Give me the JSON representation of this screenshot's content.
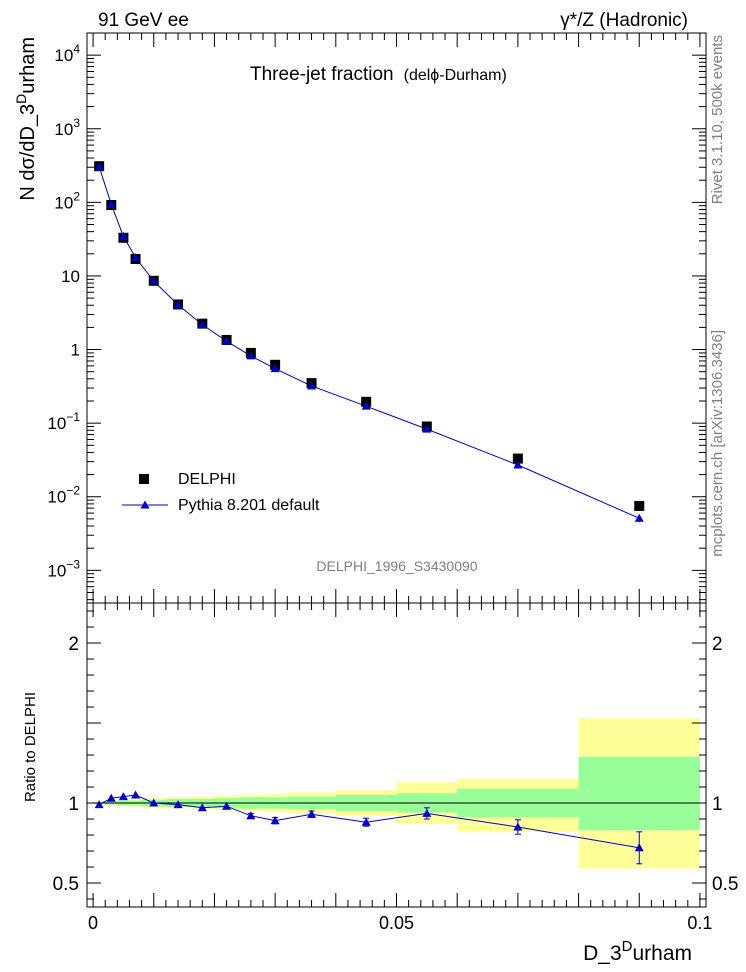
{
  "header": {
    "left": "91 GeV ee",
    "right": "γ*/Z (Hadronic)"
  },
  "side_labels": {
    "top": "Rivet 3.1.10,  500k events",
    "bottom": "mcplots.cern.ch [arXiv:1306.3436]"
  },
  "watermark": "DELPHI_1996_S3430090",
  "chart_data": [
    {
      "type": "scatter",
      "title": "Three-jet fraction",
      "subtitle": "(delϕ-Durham)",
      "ylabel": "N dσ/dD_3^Durham",
      "ylabel_parts": {
        "main": "N dσ/dD_3",
        "sup": "D",
        "rest": "urham"
      },
      "yscale": "log",
      "xlim": [
        -0.001,
        0.101
      ],
      "ylim": [
        0.00036,
        20000
      ],
      "y_ticks": [
        {
          "value": 10000,
          "base": "10",
          "exp": "4"
        },
        {
          "value": 1000,
          "base": "10",
          "exp": "3"
        },
        {
          "value": 100,
          "base": "10",
          "exp": "2"
        },
        {
          "value": 10,
          "base": "10",
          "exp": ""
        },
        {
          "value": 1,
          "base": "1",
          "exp": ""
        },
        {
          "value": 0.1,
          "base": "10",
          "exp": "−1"
        },
        {
          "value": 0.01,
          "base": "10",
          "exp": "−2"
        },
        {
          "value": 0.001,
          "base": "10",
          "exp": "−3"
        }
      ],
      "legend_position": "lower-left",
      "series": [
        {
          "name": "DELPHI",
          "marker": "square",
          "color": "#000000",
          "x": [
            0.001,
            0.003,
            0.005,
            0.007,
            0.01,
            0.014,
            0.018,
            0.022,
            0.026,
            0.03,
            0.036,
            0.045,
            0.055,
            0.07,
            0.09
          ],
          "y": [
            310,
            92,
            33,
            17,
            8.6,
            4.1,
            2.25,
            1.35,
            0.9,
            0.62,
            0.35,
            0.195,
            0.09,
            0.033,
            0.0075
          ]
        },
        {
          "name": "Pythia 8.201 default",
          "marker": "triangle",
          "color": "#0000cc",
          "x": [
            0.001,
            0.003,
            0.005,
            0.007,
            0.01,
            0.014,
            0.018,
            0.022,
            0.026,
            0.03,
            0.036,
            0.045,
            0.055,
            0.07,
            0.09
          ],
          "y": [
            305,
            94,
            34.5,
            17.8,
            8.5,
            4.05,
            2.18,
            1.3,
            0.82,
            0.55,
            0.32,
            0.17,
            0.083,
            0.027,
            0.0051
          ],
          "yerr": [
            0,
            0,
            0,
            0,
            0,
            0,
            0,
            0,
            0,
            0,
            0,
            0,
            0,
            0.002,
            0.0006
          ]
        }
      ]
    },
    {
      "type": "scatter",
      "title": "",
      "xlabel": "D_3^Durham",
      "xlabel_parts": {
        "main": "D_3",
        "sup": "D",
        "rest": "urham"
      },
      "ylabel": "Ratio to DELPHI",
      "xlim": [
        -0.001,
        0.101
      ],
      "ylim": [
        0.35,
        2.25
      ],
      "x_ticks": [
        {
          "value": 0,
          "label": "0"
        },
        {
          "value": 0.05,
          "label": "0.05"
        },
        {
          "value": 0.1,
          "label": "0.1"
        }
      ],
      "y_ticks": [
        {
          "value": 0.5,
          "label": "0.5"
        },
        {
          "value": 1,
          "label": "1"
        },
        {
          "value": 2,
          "label": "2"
        }
      ],
      "uncertainty_bands": [
        {
          "x0": 0.0,
          "x1": 0.002,
          "g": [
            0.995,
            1.005
          ],
          "y": [
            0.99,
            1.01
          ]
        },
        {
          "x0": 0.002,
          "x1": 0.004,
          "g": [
            0.99,
            1.01
          ],
          "y": [
            0.985,
            1.015
          ]
        },
        {
          "x0": 0.004,
          "x1": 0.006,
          "g": [
            0.985,
            1.015
          ],
          "y": [
            0.98,
            1.02
          ]
        },
        {
          "x0": 0.006,
          "x1": 0.008,
          "g": [
            0.985,
            1.015
          ],
          "y": [
            0.975,
            1.025
          ]
        },
        {
          "x0": 0.008,
          "x1": 0.012,
          "g": [
            0.98,
            1.02
          ],
          "y": [
            0.97,
            1.03
          ]
        },
        {
          "x0": 0.012,
          "x1": 0.016,
          "g": [
            0.975,
            1.025
          ],
          "y": [
            0.965,
            1.035
          ]
        },
        {
          "x0": 0.016,
          "x1": 0.02,
          "g": [
            0.975,
            1.025
          ],
          "y": [
            0.96,
            1.04
          ]
        },
        {
          "x0": 0.02,
          "x1": 0.024,
          "g": [
            0.97,
            1.03
          ],
          "y": [
            0.955,
            1.045
          ]
        },
        {
          "x0": 0.024,
          "x1": 0.028,
          "g": [
            0.965,
            1.035
          ],
          "y": [
            0.95,
            1.05
          ]
        },
        {
          "x0": 0.028,
          "x1": 0.032,
          "g": [
            0.965,
            1.035
          ],
          "y": [
            0.945,
            1.055
          ]
        },
        {
          "x0": 0.032,
          "x1": 0.04,
          "g": [
            0.96,
            1.04
          ],
          "y": [
            0.935,
            1.065
          ]
        },
        {
          "x0": 0.04,
          "x1": 0.05,
          "g": [
            0.95,
            1.05
          ],
          "y": [
            0.92,
            1.08
          ]
        },
        {
          "x0": 0.05,
          "x1": 0.06,
          "g": [
            0.94,
            1.06
          ],
          "y": [
            0.87,
            1.13
          ]
        },
        {
          "x0": 0.06,
          "x1": 0.08,
          "g": [
            0.91,
            1.09
          ],
          "y": [
            0.82,
            1.15
          ]
        },
        {
          "x0": 0.08,
          "x1": 0.1,
          "g": [
            0.83,
            1.29
          ],
          "y": [
            0.59,
            1.53
          ]
        }
      ],
      "series": [
        {
          "name": "Pythia 8.201 default",
          "marker": "triangle",
          "color": "#0000cc",
          "x": [
            0.001,
            0.003,
            0.005,
            0.007,
            0.01,
            0.014,
            0.018,
            0.022,
            0.026,
            0.03,
            0.036,
            0.045,
            0.055,
            0.07,
            0.09
          ],
          "y": [
            0.99,
            1.03,
            1.04,
            1.05,
            1.0,
            0.99,
            0.97,
            0.98,
            0.92,
            0.89,
            0.93,
            0.88,
            0.935,
            0.85,
            0.72
          ],
          "yerr": [
            0.005,
            0.005,
            0.005,
            0.005,
            0.005,
            0.005,
            0.005,
            0.01,
            0.015,
            0.02,
            0.02,
            0.025,
            0.035,
            0.045,
            0.1
          ]
        }
      ]
    }
  ],
  "colors": {
    "band_outer": "#ffff99",
    "band_inner": "#99ff99",
    "data": "#000000",
    "mc": "#0000cc",
    "secondary_text": "#7f7f7f"
  }
}
